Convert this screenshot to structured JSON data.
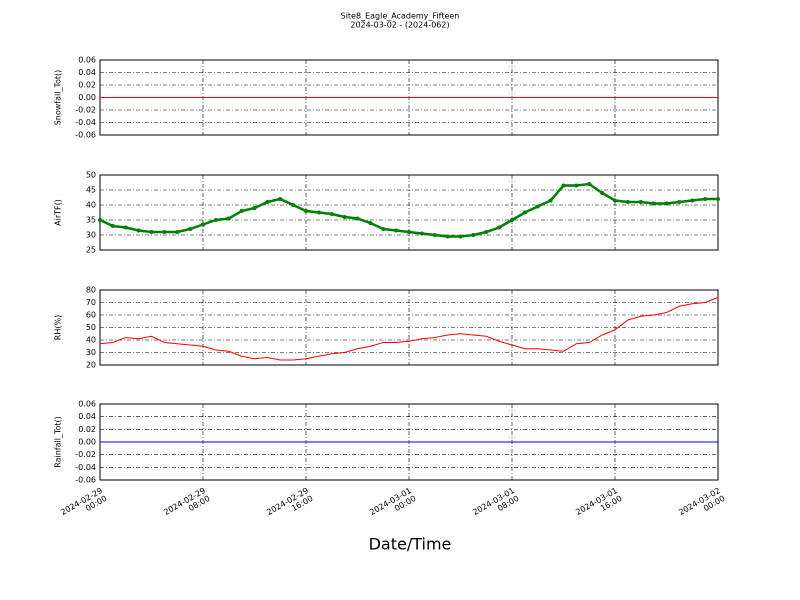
{
  "title": "Site8_Eagle_Academy_Fifteen",
  "subtitle": "2024-03-02 - (2024-062)",
  "xaxis": {
    "label": "Date/Time",
    "xlim": [
      "2024-02-29 00:00",
      "2024-03-02 00:00"
    ],
    "xticks": [
      {
        "value": "2024-02-29 00:00",
        "label": "2024-02-29\n00:00"
      },
      {
        "value": "2024-02-29 08:00",
        "label": "2024-02-29\n08:00"
      },
      {
        "value": "2024-02-29 16:00",
        "label": "2024-02-29\n16:00"
      },
      {
        "value": "2024-03-01 00:00",
        "label": "2024-03-01\n00:00"
      },
      {
        "value": "2024-03-01 08:00",
        "label": "2024-03-01\n08:00"
      },
      {
        "value": "2024-03-01 16:00",
        "label": "2024-03-01\n16:00"
      },
      {
        "value": "2024-03-02 00:00",
        "label": "2024-03-02\n00:00"
      }
    ]
  },
  "chart_data": [
    {
      "type": "line",
      "ylabel": "Snowfall_Tot()",
      "grid": true,
      "ylim": [
        -0.06,
        0.06
      ],
      "yticks": [
        -0.06,
        -0.04,
        -0.02,
        {
          "value": 0,
          "label": "0.00"
        },
        0.02,
        0.04,
        0.06
      ],
      "x": [
        "2024-02-29 00:00",
        "2024-03-02 00:00"
      ],
      "series": [
        {
          "name": "Snowfall_Tot()",
          "color": "#ff0000",
          "values": [
            0,
            0
          ]
        }
      ]
    },
    {
      "type": "line",
      "ylabel": "AirTF()",
      "grid": true,
      "markers": true,
      "ylim": [
        25,
        50
      ],
      "yticks": [
        25,
        30,
        35,
        40,
        45,
        50
      ],
      "x": [
        "2024-02-29 00:00",
        "2024-02-29 01:00",
        "2024-02-29 02:00",
        "2024-02-29 03:00",
        "2024-02-29 04:00",
        "2024-02-29 05:00",
        "2024-02-29 06:00",
        "2024-02-29 07:00",
        "2024-02-29 08:00",
        "2024-02-29 09:00",
        "2024-02-29 10:00",
        "2024-02-29 11:00",
        "2024-02-29 12:00",
        "2024-02-29 13:00",
        "2024-02-29 14:00",
        "2024-02-29 15:00",
        "2024-02-29 16:00",
        "2024-02-29 17:00",
        "2024-02-29 18:00",
        "2024-02-29 19:00",
        "2024-02-29 20:00",
        "2024-02-29 21:00",
        "2024-02-29 22:00",
        "2024-02-29 23:00",
        "2024-03-01 00:00",
        "2024-03-01 01:00",
        "2024-03-01 02:00",
        "2024-03-01 03:00",
        "2024-03-01 04:00",
        "2024-03-01 05:00",
        "2024-03-01 06:00",
        "2024-03-01 07:00",
        "2024-03-01 08:00",
        "2024-03-01 09:00",
        "2024-03-01 10:00",
        "2024-03-01 11:00",
        "2024-03-01 12:00",
        "2024-03-01 13:00",
        "2024-03-01 14:00",
        "2024-03-01 15:00",
        "2024-03-01 16:00",
        "2024-03-01 17:00",
        "2024-03-01 18:00",
        "2024-03-01 19:00",
        "2024-03-01 20:00",
        "2024-03-01 21:00",
        "2024-03-01 22:00",
        "2024-03-01 23:00",
        "2024-03-02 00:00"
      ],
      "series": [
        {
          "name": "AirTF()",
          "color": "#008000",
          "values": [
            35,
            33,
            32.5,
            31.5,
            31,
            31,
            31,
            32,
            33.5,
            35,
            35.5,
            38,
            39,
            41,
            42,
            40,
            38,
            37.5,
            37,
            36,
            35.5,
            34,
            32,
            31.5,
            31,
            30.5,
            30,
            29.5,
            29.5,
            30,
            31,
            32.5,
            35,
            37.5,
            39.5,
            41.5,
            46.5,
            46.5,
            47,
            44,
            41.5,
            41,
            41,
            40.5,
            40.5,
            41,
            41.5,
            42,
            42
          ]
        }
      ]
    },
    {
      "type": "line",
      "ylabel": "RH(%)",
      "grid": true,
      "ylim": [
        20,
        80
      ],
      "yticks": [
        20,
        30,
        40,
        50,
        60,
        70,
        80
      ],
      "x": [
        "2024-02-29 00:00",
        "2024-02-29 01:00",
        "2024-02-29 02:00",
        "2024-02-29 03:00",
        "2024-02-29 04:00",
        "2024-02-29 05:00",
        "2024-02-29 06:00",
        "2024-02-29 07:00",
        "2024-02-29 08:00",
        "2024-02-29 09:00",
        "2024-02-29 10:00",
        "2024-02-29 11:00",
        "2024-02-29 12:00",
        "2024-02-29 13:00",
        "2024-02-29 14:00",
        "2024-02-29 15:00",
        "2024-02-29 16:00",
        "2024-02-29 17:00",
        "2024-02-29 18:00",
        "2024-02-29 19:00",
        "2024-02-29 20:00",
        "2024-02-29 21:00",
        "2024-02-29 22:00",
        "2024-02-29 23:00",
        "2024-03-01 00:00",
        "2024-03-01 01:00",
        "2024-03-01 02:00",
        "2024-03-01 03:00",
        "2024-03-01 04:00",
        "2024-03-01 05:00",
        "2024-03-01 06:00",
        "2024-03-01 07:00",
        "2024-03-01 08:00",
        "2024-03-01 09:00",
        "2024-03-01 10:00",
        "2024-03-01 11:00",
        "2024-03-01 12:00",
        "2024-03-01 13:00",
        "2024-03-01 14:00",
        "2024-03-01 15:00",
        "2024-03-01 16:00",
        "2024-03-01 17:00",
        "2024-03-01 18:00",
        "2024-03-01 19:00",
        "2024-03-01 20:00",
        "2024-03-01 21:00",
        "2024-03-01 22:00",
        "2024-03-01 23:00",
        "2024-03-02 00:00"
      ],
      "series": [
        {
          "name": "RH(%)",
          "color": "#ff0000",
          "values": [
            37,
            38,
            42,
            41,
            43,
            38,
            37,
            36,
            35,
            32,
            31,
            27,
            25,
            26,
            24,
            24,
            25,
            27,
            29,
            30,
            33,
            35,
            38,
            38,
            39,
            41,
            42,
            44,
            45,
            44,
            43,
            39,
            36,
            33,
            33,
            32,
            31,
            37,
            38,
            44,
            48,
            56,
            59,
            60,
            62,
            67,
            69,
            70,
            74
          ]
        }
      ]
    },
    {
      "type": "line",
      "ylabel": "Rainfall_Tot()",
      "grid": true,
      "ylim": [
        -0.06,
        0.06
      ],
      "yticks": [
        -0.06,
        -0.04,
        -0.02,
        {
          "value": 0,
          "label": "0.00"
        },
        0.02,
        0.04,
        0.06
      ],
      "x": [
        "2024-02-29 00:00",
        "2024-03-02 00:00"
      ],
      "series": [
        {
          "name": "Rainfall_Tot()",
          "color": "#0000ff",
          "values": [
            0,
            0
          ]
        }
      ]
    }
  ]
}
